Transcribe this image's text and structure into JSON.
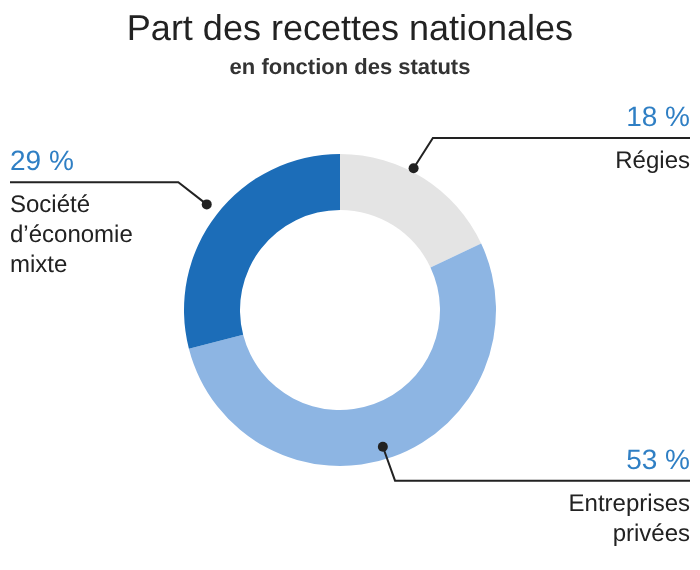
{
  "chart_data": {
    "type": "donut",
    "title": "Part des recettes nationales",
    "subtitle": "en fonction des statuts",
    "categories": [
      "Régies",
      "Entreprises privées",
      "Société d’économie mixte"
    ],
    "values": [
      18,
      53,
      29
    ],
    "value_labels": [
      "18 %",
      "53 %",
      "29 %"
    ],
    "colors": [
      "#e4e4e4",
      "#8db5e3",
      "#1c6db8"
    ]
  }
}
